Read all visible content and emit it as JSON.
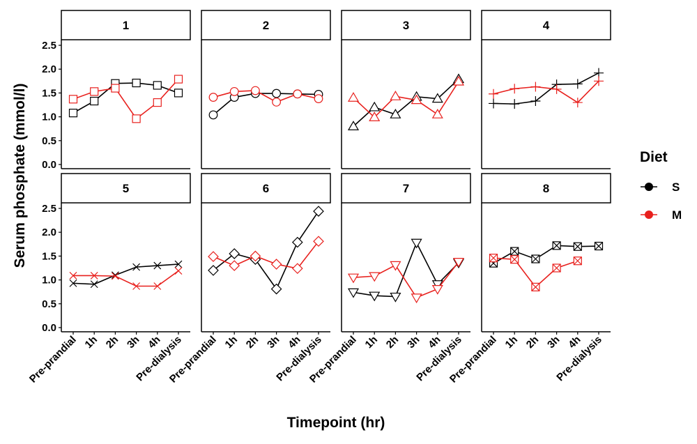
{
  "chart_data": {
    "type": "line",
    "facet_layout": "4 columns x 2 rows",
    "xlabel": "Timepoint (hr)",
    "ylabel": "Serum phosphate (mmol/l)",
    "categories": [
      "Pre-prandial",
      "1h",
      "2h",
      "3h",
      "4h",
      "Pre-dialysis"
    ],
    "ylim": [
      0,
      2.5
    ],
    "yticks": [
      "0.0",
      "0.5",
      "1.0",
      "1.5",
      "2.0",
      "2.5"
    ],
    "grid": false,
    "legend": {
      "title": "Diet",
      "placement": "right",
      "entries": [
        {
          "label": "S",
          "color": "#000000"
        },
        {
          "label": "M",
          "color": "#e8201d"
        }
      ]
    },
    "panels": [
      {
        "label": "1",
        "shape": "square",
        "S": [
          1.08,
          1.33,
          1.7,
          1.71,
          1.66,
          1.5
        ],
        "M": [
          1.37,
          1.53,
          1.6,
          0.96,
          1.3,
          1.79
        ]
      },
      {
        "label": "2",
        "shape": "circle",
        "S": [
          1.04,
          1.41,
          1.49,
          1.49,
          1.48,
          1.47
        ],
        "M": [
          1.41,
          1.53,
          1.55,
          1.31,
          1.48,
          1.38
        ]
      },
      {
        "label": "3",
        "shape": "triangle-up",
        "S": [
          0.8,
          1.2,
          1.05,
          1.42,
          1.38,
          1.79
        ],
        "M": [
          1.4,
          0.99,
          1.43,
          1.35,
          1.05,
          1.74
        ]
      },
      {
        "label": "4",
        "shape": "plus",
        "S": [
          1.28,
          1.27,
          1.33,
          1.68,
          1.69,
          1.92
        ],
        "M": [
          1.48,
          1.59,
          1.63,
          1.58,
          1.3,
          1.75
        ]
      },
      {
        "label": "5",
        "shape": "cross",
        "S": [
          0.93,
          0.91,
          1.1,
          1.27,
          1.3,
          1.33
        ],
        "M": [
          1.09,
          1.09,
          1.08,
          0.87,
          0.87,
          1.19
        ]
      },
      {
        "label": "6",
        "shape": "diamond",
        "S": [
          1.2,
          1.55,
          1.43,
          0.81,
          1.79,
          2.44
        ],
        "M": [
          1.49,
          1.3,
          1.5,
          1.33,
          1.24,
          1.81
        ]
      },
      {
        "label": "7",
        "shape": "triangle-down",
        "S": [
          0.74,
          0.67,
          0.65,
          1.78,
          0.91,
          1.36
        ],
        "M": [
          1.05,
          1.08,
          1.31,
          0.63,
          0.81,
          1.38
        ]
      },
      {
        "label": "8",
        "shape": "square-cross",
        "S": [
          1.35,
          1.6,
          1.44,
          1.72,
          1.7,
          1.71
        ],
        "M": [
          1.46,
          1.43,
          0.85,
          1.25,
          1.4,
          null
        ]
      }
    ]
  }
}
